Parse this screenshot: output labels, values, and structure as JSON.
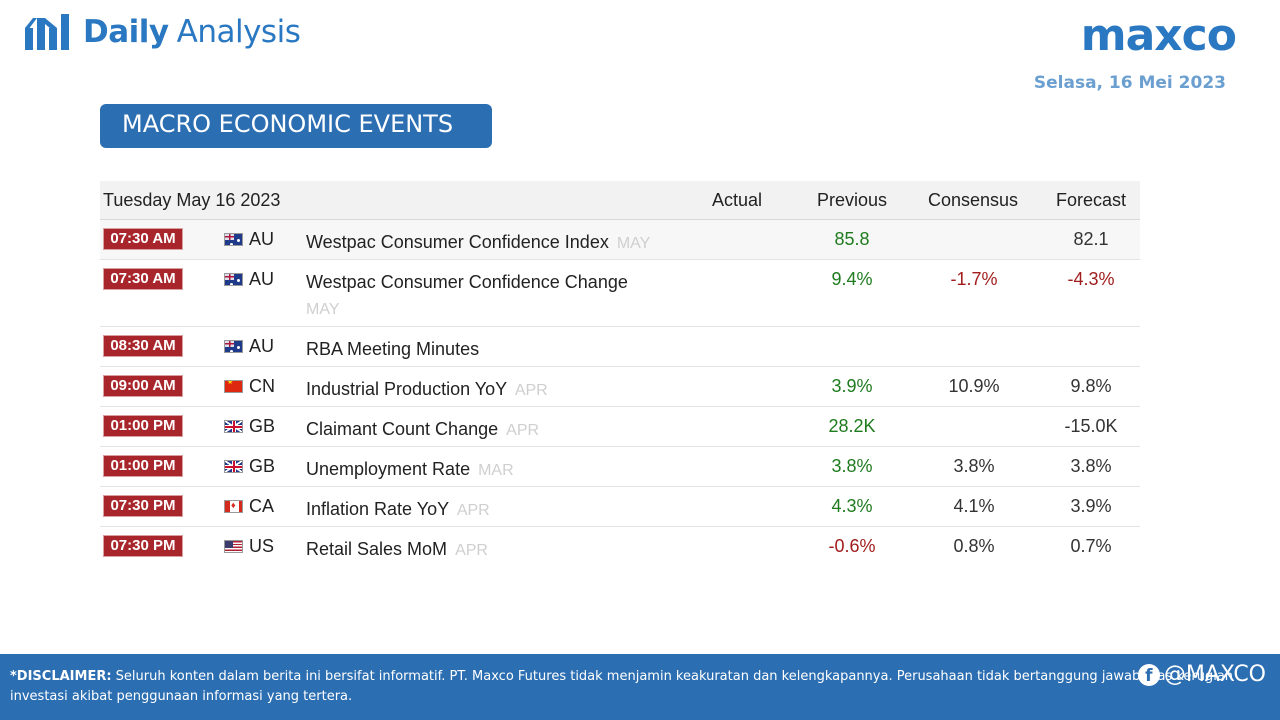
{
  "header": {
    "brand_bold": "Daily",
    "brand_light": "Analysis",
    "brand_icon": "bar-chart-icon",
    "logo": "maxco",
    "date": "Selasa,  16 Mei 2023",
    "section_title": "MACRO ECONOMIC EVENTS"
  },
  "colors": {
    "brand_blue": "#2a78c2",
    "title_bg": "#2c6eb2",
    "time_badge": "#a8252b",
    "positive": "#1e7b1e",
    "negative": "#a11d1d",
    "period_grey": "#cfcfcf"
  },
  "calendar": {
    "date_header": "Tuesday May 16 2023",
    "col_actual": "Actual",
    "col_previous": "Previous",
    "col_consensus": "Consensus",
    "col_forecast": "Forecast",
    "rows": [
      {
        "time": "07:30 AM",
        "flag": "au-flag-icon",
        "country": "AU",
        "event": "Westpac Consumer Confidence Index",
        "period": "MAY",
        "actual": "",
        "previous": "85.8",
        "consensus": "",
        "forecast": "82.1"
      },
      {
        "time": "07:30 AM",
        "flag": "au-flag-icon",
        "country": "AU",
        "event": "Westpac Consumer Confidence Change",
        "period": "MAY",
        "actual": "",
        "previous": "9.4%",
        "consensus": "-1.7%",
        "forecast": "-4.3%"
      },
      {
        "time": "08:30 AM",
        "flag": "au-flag-icon",
        "country": "AU",
        "event": "RBA Meeting Minutes",
        "period": "",
        "actual": "",
        "previous": "",
        "consensus": "",
        "forecast": ""
      },
      {
        "time": "09:00 AM",
        "flag": "cn-flag-icon",
        "country": "CN",
        "event": "Industrial Production YoY",
        "period": "APR",
        "actual": "",
        "previous": "3.9%",
        "consensus": "10.9%",
        "forecast": "9.8%"
      },
      {
        "time": "01:00 PM",
        "flag": "gb-flag-icon",
        "country": "GB",
        "event": "Claimant Count Change",
        "period": "APR",
        "actual": "",
        "previous": "28.2K",
        "consensus": "",
        "forecast": "-15.0K"
      },
      {
        "time": "01:00 PM",
        "flag": "gb-flag-icon",
        "country": "GB",
        "event": "Unemployment Rate",
        "period": "MAR",
        "actual": "",
        "previous": "3.8%",
        "consensus": "3.8%",
        "forecast": "3.8%"
      },
      {
        "time": "07:30 PM",
        "flag": "ca-flag-icon",
        "country": "CA",
        "event": "Inflation Rate YoY",
        "period": "APR",
        "actual": "",
        "previous": "4.3%",
        "consensus": "4.1%",
        "forecast": "3.9%"
      },
      {
        "time": "07:30 PM",
        "flag": "us-flag-icon",
        "country": "US",
        "event": "Retail Sales MoM",
        "period": "APR",
        "actual": "",
        "previous": "-0.6%",
        "consensus": "0.8%",
        "forecast": "0.7%"
      }
    ]
  },
  "footer": {
    "disclaimer_label": "*DISCLAIMER:",
    "disclaimer_text": " Seluruh konten dalam berita ini bersifat informatif. PT. Maxco Futures tidak menjamin keakuratan dan kelengkapannya. Perusahaan tidak bertanggung jawab atas kerugian investasi akibat penggunaan informasi yang tertera.",
    "social_handle": "@MAXCO",
    "social_icon": "facebook-icon"
  }
}
